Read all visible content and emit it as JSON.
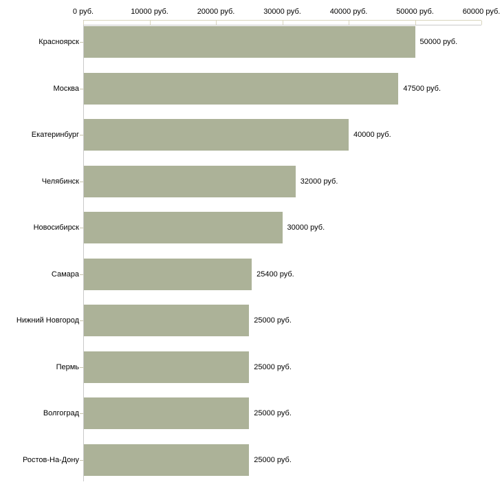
{
  "chart_data": {
    "type": "bar",
    "orientation": "horizontal",
    "title": "",
    "categories": [
      "Красноярск",
      "Москва",
      "Екатеринбург",
      "Челябинск",
      "Новосибирск",
      "Самара",
      "Нижний Новгород",
      "Пермь",
      "Волгоград",
      "Ростов-На-Дону"
    ],
    "values": [
      50000,
      47500,
      40000,
      32000,
      30000,
      25400,
      25000,
      25000,
      25000,
      25000
    ],
    "bar_labels": [
      "50000 руб.",
      "47500 руб.",
      "40000 руб.",
      "32000 руб.",
      "30000 руб.",
      "25400 руб.",
      "25000 руб.",
      "25000 руб.",
      "25000 руб.",
      "25000 руб."
    ],
    "x_axis": {
      "position": "top",
      "tick_labels": [
        "0 руб.",
        "10000 руб.",
        "20000 руб.",
        "30000 руб.",
        "40000 руб.",
        "50000 руб.",
        "60000 руб."
      ],
      "tick_values": [
        0,
        10000,
        20000,
        30000,
        40000,
        50000,
        60000
      ],
      "min": 0,
      "max": 60000
    },
    "y_axis": {
      "position": "left"
    },
    "grid": false,
    "legend": false,
    "colors": {
      "bar": "#acb298",
      "value_axis_line": "#d9d5bd",
      "plot_border": "#c8c8c8",
      "category_tick": "#c5c2a9",
      "text": "#000000",
      "background": "#ffffff"
    }
  }
}
